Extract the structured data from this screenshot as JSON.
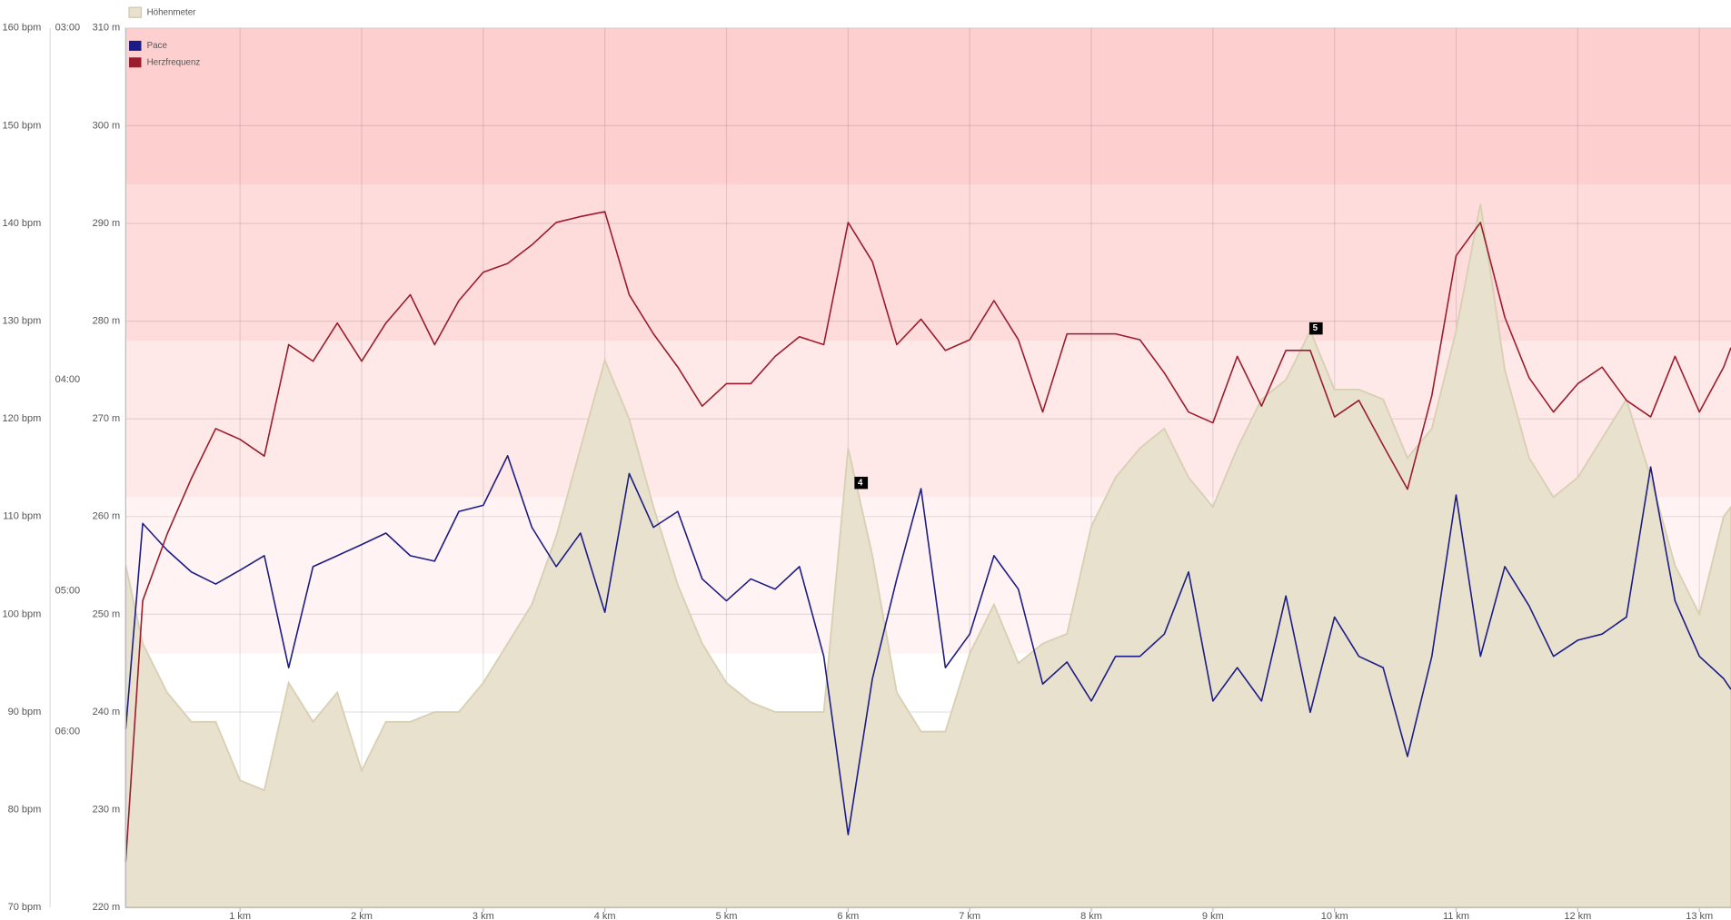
{
  "chart_data": {
    "type": "line",
    "xlim": [
      0.06,
      13.26
    ],
    "xticks": [
      {
        "value": 1,
        "label": "1 km"
      },
      {
        "value": 2,
        "label": "2 km"
      },
      {
        "value": 3,
        "label": "3 km"
      },
      {
        "value": 4,
        "label": "4 km"
      },
      {
        "value": 5,
        "label": "5 km"
      },
      {
        "value": 6,
        "label": "6 km"
      },
      {
        "value": 7,
        "label": "7 km"
      },
      {
        "value": 8,
        "label": "8 km"
      },
      {
        "value": 9,
        "label": "9 km"
      },
      {
        "value": 10,
        "label": "10 km"
      },
      {
        "value": 11,
        "label": "11 km"
      },
      {
        "value": 12,
        "label": "12 km"
      },
      {
        "value": 13,
        "label": "13 km"
      }
    ],
    "ylim": [
      70,
      160
    ],
    "yticks": [
      {
        "value": 70,
        "label": "70 bpm"
      },
      {
        "value": 80,
        "label": "80 bpm"
      },
      {
        "value": 90,
        "label": "90 bpm"
      },
      {
        "value": 100,
        "label": "100 bpm"
      },
      {
        "value": 110,
        "label": "110 bpm"
      },
      {
        "value": 120,
        "label": "120 bpm"
      },
      {
        "value": 130,
        "label": "130 bpm"
      },
      {
        "value": 140,
        "label": "140 bpm"
      },
      {
        "value": 150,
        "label": "150 bpm"
      },
      {
        "value": 160,
        "label": "160 bpm"
      }
    ],
    "y2lim": [
      8,
      3
    ],
    "y2scale": "reciprocal",
    "y2ticks": [
      {
        "value": 3,
        "label": "03:00"
      },
      {
        "value": 4,
        "label": "04:00"
      },
      {
        "value": 5,
        "label": "05:00"
      },
      {
        "value": 6,
        "label": "06:00"
      }
    ],
    "y3lim": [
      220,
      310
    ],
    "y3ticks": [
      {
        "value": 220,
        "label": "220 m"
      },
      {
        "value": 230,
        "label": "230 m"
      },
      {
        "value": 240,
        "label": "240 m"
      },
      {
        "value": 250,
        "label": "250 m"
      },
      {
        "value": 260,
        "label": "260 m"
      },
      {
        "value": 270,
        "label": "270 m"
      },
      {
        "value": 280,
        "label": "280 m"
      },
      {
        "value": 290,
        "label": "290 m"
      },
      {
        "value": 300,
        "label": "300 m"
      },
      {
        "value": 310,
        "label": "310 m"
      }
    ],
    "grid": true,
    "zones": [
      {
        "from": 96,
        "to": 112,
        "color": "#fff3f3"
      },
      {
        "from": 112,
        "to": 128,
        "color": "#fee8e8"
      },
      {
        "from": 128,
        "to": 144,
        "color": "#fedcdc"
      },
      {
        "from": 144,
        "to": 160,
        "color": "#fecfcf"
      }
    ],
    "x": [
      0.06,
      0.2,
      0.4,
      0.6,
      0.8,
      1.0,
      1.2,
      1.4,
      1.6,
      1.8,
      2.0,
      2.2,
      2.4,
      2.6,
      2.8,
      3.0,
      3.2,
      3.4,
      3.6,
      3.8,
      4.0,
      4.2,
      4.4,
      4.6,
      4.8,
      5.0,
      5.2,
      5.4,
      5.6,
      5.8,
      6.0,
      6.2,
      6.4,
      6.6,
      6.8,
      7.0,
      7.2,
      7.4,
      7.6,
      7.8,
      8.0,
      8.2,
      8.4,
      8.6,
      8.8,
      9.0,
      9.2,
      9.4,
      9.6,
      9.8,
      10.0,
      10.2,
      10.4,
      10.6,
      10.8,
      11.0,
      11.2,
      11.4,
      11.6,
      11.8,
      12.0,
      12.2,
      12.4,
      12.6,
      12.8,
      13.0,
      13.2,
      13.26
    ],
    "series": [
      {
        "name": "Höhenmeter",
        "type": "area",
        "axis": "y3",
        "color": "#e8e1cd",
        "values": [
          255,
          247,
          242,
          239,
          239,
          233,
          232,
          243,
          239,
          242,
          234,
          239,
          239,
          240,
          240,
          243,
          247,
          251,
          258,
          267,
          276,
          270,
          261,
          253,
          247,
          243,
          241,
          240,
          240,
          240,
          267,
          256,
          242,
          238,
          238,
          246,
          251,
          245,
          247,
          248,
          259,
          264,
          267,
          269,
          264,
          261,
          267,
          272,
          274,
          279,
          273,
          273,
          272,
          266,
          269,
          279,
          292,
          275,
          266,
          262,
          264,
          268,
          272,
          264,
          255,
          250,
          260,
          261
        ]
      },
      {
        "name": "Pace",
        "axis": "y2",
        "color": "#1c1c86",
        "values": [
          5.98,
          4.63,
          4.77,
          4.89,
          4.96,
          4.88,
          4.8,
          5.5,
          4.86,
          4.8,
          4.74,
          4.68,
          4.8,
          4.83,
          4.57,
          4.54,
          4.31,
          4.65,
          4.86,
          4.68,
          5.13,
          4.39,
          4.65,
          4.57,
          4.93,
          5.06,
          4.93,
          4.99,
          4.86,
          5.42,
          7.03,
          5.58,
          4.93,
          4.46,
          5.5,
          5.27,
          4.8,
          4.99,
          5.62,
          5.46,
          5.75,
          5.42,
          5.42,
          5.27,
          4.89,
          5.75,
          5.5,
          5.75,
          5.03,
          5.84,
          5.16,
          5.42,
          5.5,
          6.22,
          5.42,
          4.49,
          5.42,
          4.86,
          5.09,
          5.42,
          5.31,
          5.27,
          5.16,
          4.36,
          5.06,
          5.42,
          5.58,
          5.66
        ]
      },
      {
        "name": "Herzfrequenz",
        "axis": "y",
        "color": "#9b1c2c",
        "values": [
          74.7,
          101.4,
          108.2,
          113.9,
          119,
          117.9,
          116.2,
          127.6,
          125.9,
          129.8,
          125.9,
          129.8,
          132.7,
          127.6,
          132.1,
          135,
          135.9,
          137.8,
          140.1,
          140.7,
          141.2,
          132.7,
          128.7,
          125.3,
          121.3,
          123.6,
          123.6,
          126.4,
          128.4,
          127.6,
          140.1,
          136.1,
          127.6,
          130.2,
          127,
          128.1,
          132.1,
          128.1,
          120.7,
          128.7,
          128.7,
          128.7,
          128.1,
          124.7,
          120.7,
          119.6,
          126.4,
          121.3,
          127,
          127,
          120.2,
          121.9,
          117.3,
          112.8,
          122.4,
          136.7,
          140.1,
          130.4,
          124.2,
          120.7,
          123.6,
          125.3,
          121.9,
          120.2,
          126.4,
          120.7,
          125.3,
          127.3
        ]
      }
    ],
    "markers": [
      {
        "x": 6.08,
        "label": "4"
      },
      {
        "x": 9.82,
        "label": "5"
      }
    ]
  }
}
